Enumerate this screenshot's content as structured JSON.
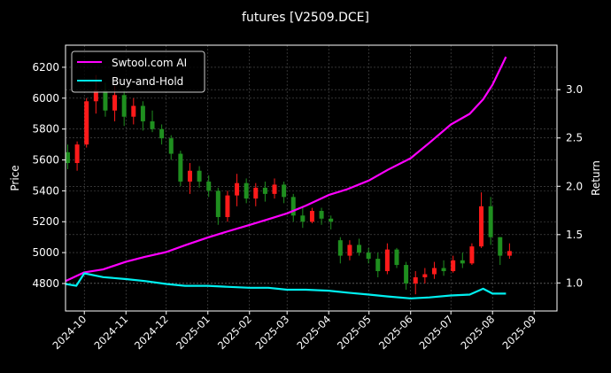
{
  "chart_data": {
    "type": "candlestick+line",
    "title": "futures [V2509.DCE]",
    "ylabel_left": "Price",
    "ylabel_right": "Return",
    "xlim": [
      "2024-09-17",
      "2025-09-18"
    ],
    "ylim_left": [
      4622,
      6343
    ],
    "ylim_right": [
      0.71,
      3.46
    ],
    "grid": true,
    "legend_placement": "top-left",
    "x_ticks": [
      "2024-10",
      "2024-11",
      "2024-12",
      "2025-01",
      "2025-02",
      "2025-03",
      "2025-04",
      "2025-05",
      "2025-06",
      "2025-07",
      "2025-08",
      "2025-09"
    ],
    "y_ticks_left": [
      4800,
      5000,
      5200,
      5400,
      5600,
      5800,
      6000,
      6200
    ],
    "y_ticks_right": [
      "1.0",
      "1.5",
      "2.0",
      "2.5",
      "3.0"
    ],
    "colors": {
      "up": "#ff1a1a",
      "down": "#1f8f1f",
      "ai": "#ff00ff",
      "bh": "#00f0f0",
      "grid": "#555555"
    },
    "candles": [
      [
        "2024-09-16",
        5650,
        5700,
        5540,
        5580
      ],
      [
        "2024-09-23",
        5580,
        5720,
        5530,
        5700
      ],
      [
        "2024-09-30",
        5700,
        6000,
        5680,
        5980
      ],
      [
        "2024-10-07",
        5980,
        6150,
        5900,
        6050
      ],
      [
        "2024-10-14",
        6050,
        6100,
        5880,
        5920
      ],
      [
        "2024-10-21",
        5920,
        6080,
        5850,
        6020
      ],
      [
        "2024-10-28",
        6020,
        6060,
        5820,
        5880
      ],
      [
        "2024-11-04",
        5880,
        6000,
        5830,
        5950
      ],
      [
        "2024-11-11",
        5950,
        5980,
        5790,
        5850
      ],
      [
        "2024-11-18",
        5850,
        5920,
        5780,
        5800
      ],
      [
        "2024-11-25",
        5800,
        5830,
        5700,
        5740
      ],
      [
        "2024-12-02",
        5740,
        5760,
        5600,
        5640
      ],
      [
        "2024-12-09",
        5640,
        5660,
        5430,
        5460
      ],
      [
        "2024-12-16",
        5460,
        5580,
        5380,
        5530
      ],
      [
        "2024-12-23",
        5530,
        5560,
        5420,
        5460
      ],
      [
        "2024-12-30",
        5460,
        5500,
        5360,
        5400
      ],
      [
        "2025-01-06",
        5400,
        5420,
        5180,
        5230
      ],
      [
        "2025-01-13",
        5230,
        5400,
        5200,
        5370
      ],
      [
        "2025-01-20",
        5370,
        5510,
        5300,
        5450
      ],
      [
        "2025-01-27",
        5450,
        5480,
        5320,
        5350
      ],
      [
        "2025-02-03",
        5350,
        5450,
        5300,
        5420
      ],
      [
        "2025-02-10",
        5420,
        5460,
        5330,
        5380
      ],
      [
        "2025-02-17",
        5380,
        5480,
        5350,
        5440
      ],
      [
        "2025-02-24",
        5440,
        5460,
        5320,
        5360
      ],
      [
        "2025-03-03",
        5360,
        5380,
        5200,
        5240
      ],
      [
        "2025-03-10",
        5240,
        5300,
        5160,
        5200
      ],
      [
        "2025-03-17",
        5200,
        5290,
        5190,
        5270
      ],
      [
        "2025-03-24",
        5270,
        5290,
        5180,
        5220
      ],
      [
        "2025-03-31",
        5220,
        5240,
        5150,
        5200
      ],
      [
        "2025-04-07",
        5080,
        5100,
        4930,
        4980
      ],
      [
        "2025-04-14",
        4980,
        5080,
        4950,
        5050
      ],
      [
        "2025-04-21",
        5050,
        5090,
        4980,
        5000
      ],
      [
        "2025-04-28",
        5000,
        5030,
        4930,
        4960
      ],
      [
        "2025-05-05",
        4960,
        5000,
        4840,
        4880
      ],
      [
        "2025-05-12",
        4880,
        5060,
        4860,
        5020
      ],
      [
        "2025-05-19",
        5020,
        5030,
        4900,
        4920
      ],
      [
        "2025-05-26",
        4920,
        4940,
        4760,
        4800
      ],
      [
        "2025-06-02",
        4800,
        4880,
        4730,
        4840
      ],
      [
        "2025-06-09",
        4840,
        4900,
        4800,
        4860
      ],
      [
        "2025-06-16",
        4860,
        4940,
        4830,
        4900
      ],
      [
        "2025-06-23",
        4900,
        4950,
        4850,
        4880
      ],
      [
        "2025-06-30",
        4880,
        4980,
        4870,
        4950
      ],
      [
        "2025-07-07",
        4950,
        5000,
        4900,
        4930
      ],
      [
        "2025-07-14",
        4930,
        5060,
        4920,
        5040
      ],
      [
        "2025-07-21",
        5040,
        5390,
        5030,
        5300
      ],
      [
        "2025-07-28",
        5300,
        5360,
        5050,
        5100
      ],
      [
        "2025-08-04",
        5100,
        5100,
        4920,
        4980
      ],
      [
        "2025-08-11",
        4980,
        5060,
        4960,
        5010
      ]
    ],
    "series": [
      {
        "name": "Swtool.com AI",
        "axis": "right",
        "x": [
          "2024-09-17",
          "2024-10-01",
          "2024-10-15",
          "2024-11-01",
          "2024-11-15",
          "2024-12-01",
          "2024-12-15",
          "2025-01-01",
          "2025-01-15",
          "2025-02-01",
          "2025-02-15",
          "2025-03-01",
          "2025-03-15",
          "2025-04-01",
          "2025-04-15",
          "2025-05-01",
          "2025-05-15",
          "2025-06-01",
          "2025-06-15",
          "2025-07-01",
          "2025-07-15",
          "2025-07-25",
          "2025-08-01",
          "2025-08-11"
        ],
        "values": [
          1.02,
          1.11,
          1.14,
          1.22,
          1.27,
          1.32,
          1.39,
          1.47,
          1.53,
          1.6,
          1.66,
          1.72,
          1.8,
          1.91,
          1.97,
          2.06,
          2.17,
          2.29,
          2.45,
          2.64,
          2.75,
          2.9,
          3.05,
          3.34
        ]
      },
      {
        "name": "Buy-and-Hold",
        "axis": "right",
        "x": [
          "2024-09-17",
          "2024-09-25",
          "2024-10-01",
          "2024-10-15",
          "2024-11-01",
          "2024-11-15",
          "2024-12-01",
          "2024-12-15",
          "2025-01-01",
          "2025-01-15",
          "2025-02-01",
          "2025-02-15",
          "2025-03-01",
          "2025-03-15",
          "2025-04-01",
          "2025-04-15",
          "2025-05-01",
          "2025-05-15",
          "2025-06-01",
          "2025-06-15",
          "2025-07-01",
          "2025-07-15",
          "2025-07-25",
          "2025-08-01",
          "2025-08-11"
        ],
        "values": [
          0.99,
          0.97,
          1.1,
          1.06,
          1.04,
          1.02,
          0.99,
          0.97,
          0.97,
          0.96,
          0.95,
          0.95,
          0.93,
          0.93,
          0.92,
          0.9,
          0.88,
          0.86,
          0.84,
          0.85,
          0.87,
          0.88,
          0.94,
          0.89,
          0.89
        ]
      }
    ]
  }
}
